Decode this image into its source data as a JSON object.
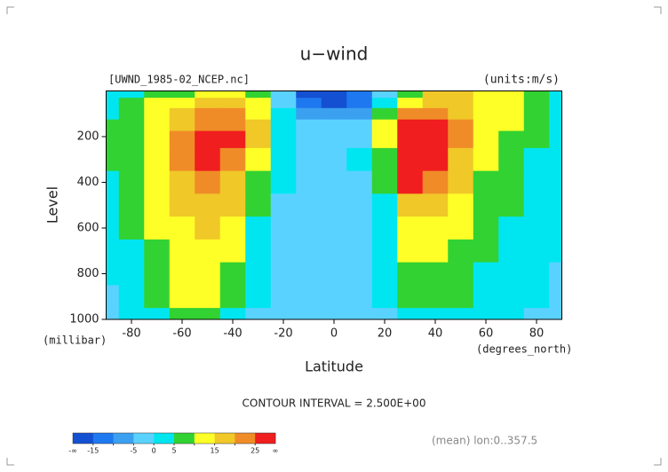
{
  "chart_data": {
    "type": "filled-contour",
    "title": "u−wind",
    "subtitle": "[UWND_1985-02_NCEP.nc]",
    "units_label": "(units:m/s)",
    "x_label": "Latitude",
    "x_unit_label": "(degrees_north)",
    "y_label": "Level",
    "y_unit_label": "(millibar)",
    "annotation": "CONTOUR INTERVAL = 2.500E+00",
    "footer": "(mean) lon:0..357.5",
    "x": [
      -90,
      -80,
      -70,
      -60,
      -50,
      -40,
      -30,
      -20,
      -10,
      0,
      10,
      20,
      30,
      40,
      50,
      60,
      70,
      80,
      90
    ],
    "y": [
      10,
      50,
      100,
      150,
      200,
      300,
      400,
      500,
      600,
      700,
      800,
      900,
      1000
    ],
    "values": [
      [
        0,
        2,
        5,
        8,
        10,
        10,
        6,
        -5,
        -18,
        -20,
        -15,
        -5,
        8,
        15,
        15,
        14,
        12,
        8,
        3
      ],
      [
        3,
        6,
        10,
        14,
        16,
        16,
        10,
        -3,
        -15,
        -18,
        -12,
        0,
        12,
        18,
        16,
        14,
        12,
        8,
        3
      ],
      [
        4,
        8,
        12,
        17,
        20,
        20,
        14,
        2,
        -8,
        -10,
        -6,
        5,
        22,
        24,
        18,
        14,
        12,
        8,
        3
      ],
      [
        5,
        8,
        13,
        19,
        24,
        23,
        16,
        4,
        -3,
        -5,
        -2,
        10,
        32,
        30,
        20,
        14,
        10,
        6,
        2
      ],
      [
        5,
        8,
        13,
        20,
        27,
        25,
        16,
        4,
        -2,
        -4,
        -1,
        12,
        42,
        35,
        20,
        12,
        8,
        5,
        2
      ],
      [
        5,
        8,
        13,
        20,
        26,
        23,
        13,
        2,
        -2,
        -3,
        0,
        9,
        36,
        30,
        18,
        10,
        7,
        4,
        1
      ],
      [
        4,
        7,
        12,
        18,
        23,
        19,
        9,
        0,
        -3,
        -3,
        -1,
        6,
        26,
        23,
        15,
        8,
        6,
        3,
        1
      ],
      [
        4,
        6,
        11,
        16,
        19,
        15,
        6,
        -1,
        -3,
        -3,
        -2,
        4,
        19,
        18,
        12,
        7,
        5,
        3,
        1
      ],
      [
        3,
        5,
        10,
        14,
        16,
        12,
        4,
        -1,
        -3,
        -3,
        -2,
        3,
        14,
        14,
        10,
        6,
        4,
        2,
        0
      ],
      [
        2,
        4,
        9,
        13,
        14,
        10,
        3,
        -1,
        -3,
        -3,
        -2,
        2,
        10,
        11,
        8,
        5,
        3,
        1,
        0
      ],
      [
        0,
        3,
        8,
        12,
        12,
        8,
        2,
        -2,
        -4,
        -3,
        -2,
        1,
        7,
        9,
        7,
        4,
        2,
        0,
        -1
      ],
      [
        -1,
        2,
        6,
        10,
        10,
        6,
        1,
        -3,
        -4,
        -3,
        -3,
        0,
        5,
        7,
        6,
        3,
        1,
        0,
        -1
      ],
      [
        -2,
        0,
        4,
        7,
        7,
        3,
        -1,
        -4,
        -4,
        -3,
        -4,
        -1,
        3,
        4,
        4,
        2,
        0,
        -1,
        -1
      ]
    ],
    "xlim": [
      -90,
      90
    ],
    "xticks": [
      -80,
      -60,
      -40,
      -20,
      0,
      20,
      40,
      60,
      80
    ],
    "ylim": [
      1000,
      0
    ],
    "yticks": [
      200,
      400,
      600,
      800,
      1000
    ],
    "colorbar": {
      "levels": [
        -15,
        -10,
        -5,
        0,
        5,
        10,
        15,
        20,
        25
      ],
      "colors": [
        "#1450d2",
        "#1e78f0",
        "#3ca0f0",
        "#5ad2ff",
        "#00e6f0",
        "#32d232",
        "#ffff28",
        "#f0c828",
        "#f08c28",
        "#f01e1e"
      ],
      "ticks": [
        -15,
        -5,
        0,
        5,
        15,
        25
      ],
      "low_label": "-∞",
      "high_label": "∞"
    }
  }
}
